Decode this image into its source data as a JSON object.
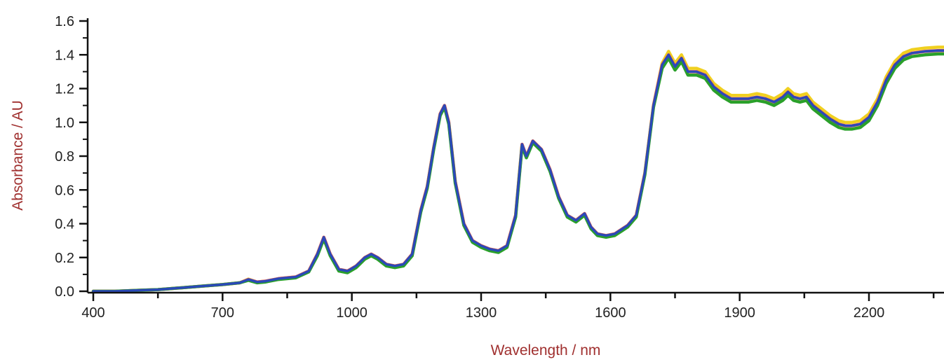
{
  "chart_data": {
    "type": "line",
    "title": "",
    "xlabel": "Wavelength / nm",
    "ylabel": "Absorbance / AU",
    "axis_title_color": "#a0302f",
    "xlim": [
      400,
      2400
    ],
    "ylim": [
      0,
      1.6
    ],
    "xticks": [
      400,
      700,
      1000,
      1300,
      1600,
      1900,
      2200
    ],
    "xtick_labels": [
      "400",
      "700",
      "1000",
      "1300",
      "1600",
      "1900",
      "2200"
    ],
    "yticks": [
      0.0,
      0.2,
      0.4,
      0.6,
      0.8,
      1.0,
      1.2,
      1.4,
      1.6
    ],
    "ytick_labels": [
      "0.0",
      "0.2",
      "0.4",
      "0.6",
      "0.8",
      "1.0",
      "1.2",
      "1.4",
      "1.6"
    ],
    "grid": false,
    "legend": "none",
    "x": [
      400,
      450,
      500,
      550,
      600,
      650,
      700,
      740,
      760,
      780,
      800,
      830,
      870,
      900,
      920,
      935,
      950,
      970,
      990,
      1010,
      1030,
      1045,
      1060,
      1080,
      1100,
      1120,
      1140,
      1160,
      1175,
      1190,
      1205,
      1215,
      1225,
      1240,
      1260,
      1280,
      1300,
      1320,
      1340,
      1360,
      1380,
      1395,
      1405,
      1420,
      1440,
      1460,
      1480,
      1500,
      1520,
      1540,
      1555,
      1570,
      1590,
      1610,
      1640,
      1660,
      1680,
      1700,
      1720,
      1735,
      1750,
      1765,
      1780,
      1800,
      1820,
      1840,
      1860,
      1880,
      1900,
      1920,
      1940,
      1960,
      1980,
      2000,
      2012,
      2025,
      2040,
      2055,
      2070,
      2090,
      2110,
      2130,
      2145,
      2160,
      2180,
      2200,
      2220,
      2240,
      2260,
      2280,
      2300,
      2330,
      2360,
      2400
    ],
    "series": [
      {
        "color": "#f0d020",
        "values": [
          0.0,
          0.0,
          0.005,
          0.01,
          0.02,
          0.03,
          0.04,
          0.05,
          0.072,
          0.055,
          0.06,
          0.075,
          0.085,
          0.12,
          0.22,
          0.32,
          0.22,
          0.13,
          0.12,
          0.15,
          0.2,
          0.22,
          0.2,
          0.16,
          0.15,
          0.16,
          0.22,
          0.48,
          0.62,
          0.85,
          1.05,
          1.1,
          1.0,
          0.65,
          0.4,
          0.3,
          0.27,
          0.25,
          0.24,
          0.27,
          0.45,
          0.87,
          0.8,
          0.89,
          0.84,
          0.72,
          0.56,
          0.45,
          0.42,
          0.46,
          0.38,
          0.34,
          0.33,
          0.34,
          0.39,
          0.45,
          0.7,
          1.1,
          1.35,
          1.42,
          1.35,
          1.4,
          1.32,
          1.32,
          1.3,
          1.23,
          1.19,
          1.16,
          1.16,
          1.16,
          1.17,
          1.16,
          1.14,
          1.17,
          1.2,
          1.17,
          1.16,
          1.17,
          1.12,
          1.08,
          1.04,
          1.01,
          1.0,
          1.0,
          1.01,
          1.05,
          1.14,
          1.27,
          1.36,
          1.41,
          1.43,
          1.44,
          1.445,
          1.445
        ]
      },
      {
        "color": "#e8505a",
        "values": [
          0.0,
          0.0,
          0.005,
          0.01,
          0.02,
          0.03,
          0.04,
          0.05,
          0.07,
          0.055,
          0.06,
          0.075,
          0.085,
          0.12,
          0.22,
          0.32,
          0.22,
          0.13,
          0.12,
          0.15,
          0.2,
          0.22,
          0.2,
          0.16,
          0.15,
          0.16,
          0.22,
          0.48,
          0.62,
          0.85,
          1.05,
          1.1,
          1.0,
          0.65,
          0.4,
          0.3,
          0.27,
          0.25,
          0.24,
          0.27,
          0.45,
          0.87,
          0.8,
          0.89,
          0.84,
          0.72,
          0.56,
          0.45,
          0.42,
          0.46,
          0.38,
          0.34,
          0.33,
          0.34,
          0.39,
          0.45,
          0.7,
          1.1,
          1.34,
          1.4,
          1.33,
          1.38,
          1.3,
          1.3,
          1.28,
          1.21,
          1.17,
          1.14,
          1.14,
          1.14,
          1.15,
          1.14,
          1.12,
          1.15,
          1.18,
          1.15,
          1.14,
          1.15,
          1.1,
          1.06,
          1.02,
          0.99,
          0.98,
          0.98,
          0.99,
          1.03,
          1.12,
          1.25,
          1.34,
          1.39,
          1.41,
          1.42,
          1.425,
          1.425
        ]
      },
      {
        "color": "#2aa02a",
        "values": [
          0.0,
          0.0,
          0.005,
          0.01,
          0.02,
          0.03,
          0.04,
          0.05,
          0.065,
          0.05,
          0.055,
          0.07,
          0.08,
          0.115,
          0.21,
          0.31,
          0.21,
          0.12,
          0.11,
          0.14,
          0.19,
          0.21,
          0.19,
          0.15,
          0.14,
          0.15,
          0.21,
          0.47,
          0.61,
          0.84,
          1.04,
          1.09,
          0.99,
          0.64,
          0.39,
          0.29,
          0.26,
          0.24,
          0.23,
          0.26,
          0.44,
          0.86,
          0.79,
          0.88,
          0.83,
          0.71,
          0.55,
          0.44,
          0.41,
          0.45,
          0.37,
          0.33,
          0.32,
          0.33,
          0.38,
          0.44,
          0.69,
          1.09,
          1.32,
          1.38,
          1.31,
          1.36,
          1.28,
          1.28,
          1.26,
          1.19,
          1.15,
          1.12,
          1.12,
          1.12,
          1.13,
          1.12,
          1.1,
          1.13,
          1.16,
          1.13,
          1.12,
          1.13,
          1.08,
          1.04,
          1.0,
          0.97,
          0.96,
          0.96,
          0.97,
          1.01,
          1.1,
          1.23,
          1.32,
          1.37,
          1.39,
          1.4,
          1.405,
          1.405
        ]
      },
      {
        "color": "#2b49b8",
        "values": [
          0.0,
          0.0,
          0.005,
          0.01,
          0.02,
          0.03,
          0.04,
          0.05,
          0.07,
          0.055,
          0.06,
          0.075,
          0.085,
          0.12,
          0.22,
          0.32,
          0.22,
          0.13,
          0.12,
          0.15,
          0.2,
          0.22,
          0.2,
          0.16,
          0.15,
          0.16,
          0.22,
          0.48,
          0.62,
          0.85,
          1.05,
          1.1,
          1.0,
          0.65,
          0.4,
          0.3,
          0.27,
          0.25,
          0.24,
          0.27,
          0.45,
          0.87,
          0.8,
          0.89,
          0.84,
          0.72,
          0.56,
          0.45,
          0.42,
          0.46,
          0.38,
          0.34,
          0.33,
          0.34,
          0.39,
          0.45,
          0.7,
          1.1,
          1.34,
          1.4,
          1.33,
          1.38,
          1.3,
          1.3,
          1.28,
          1.21,
          1.17,
          1.14,
          1.14,
          1.14,
          1.15,
          1.14,
          1.12,
          1.15,
          1.18,
          1.15,
          1.14,
          1.15,
          1.1,
          1.06,
          1.02,
          0.99,
          0.98,
          0.98,
          0.99,
          1.03,
          1.12,
          1.25,
          1.34,
          1.39,
          1.41,
          1.42,
          1.425,
          1.425
        ]
      }
    ]
  }
}
